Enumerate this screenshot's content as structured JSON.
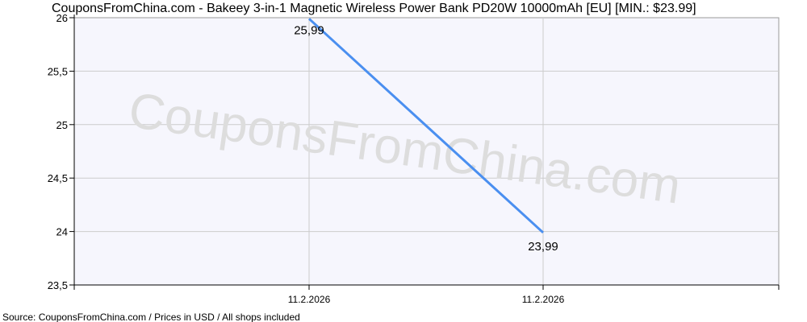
{
  "chart_data": {
    "type": "line",
    "title": "CouponsFromChina.com - Bakeey 3-in-1 Magnetic Wireless Power Bank PD20W 10000mAh [EU] [MIN.: $23.99]",
    "watermark": "CouponsFromChina.com",
    "footer": "Source: CouponsFromChina.com / Prices in USD / All shops included",
    "xlabel": "",
    "ylabel": "",
    "categories": [
      "11.2.2026",
      "11.2.2026"
    ],
    "y_ticks": [
      "23,5",
      "24",
      "24,5",
      "25",
      "25,5",
      "26"
    ],
    "y_tick_values": [
      23.5,
      24,
      24.5,
      25,
      25.5,
      26
    ],
    "ylim": [
      23.5,
      26
    ],
    "grid": true,
    "series": [
      {
        "name": "price",
        "values": [
          25.99,
          23.99
        ],
        "labels": [
          "25,99",
          "23,99"
        ],
        "color": "#4a8ff0"
      }
    ]
  }
}
